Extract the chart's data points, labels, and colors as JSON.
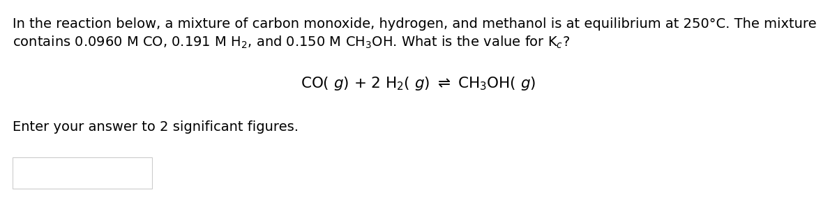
{
  "background_color": "#ffffff",
  "line1": "In the reaction below, a mixture of carbon monoxide, hydrogen, and methanol is at equilibrium at 250°C. The mixture",
  "line2": "contains 0.0960 M CO, 0.191 M H$_2$, and 0.150 M CH$_3$OH. What is the value for K$_c$?",
  "equation": "CO( $g$) + 2 H$_2$( $g$) $\\rightleftharpoons$ CH$_3$OH( $g$)",
  "answer_prompt": "Enter your answer to 2 significant figures.",
  "text_color": "#000000",
  "font_size_body": 14.0,
  "font_size_equation": 15.5,
  "background_color_box": "#ffffff",
  "box_edge_color": "#cccccc"
}
